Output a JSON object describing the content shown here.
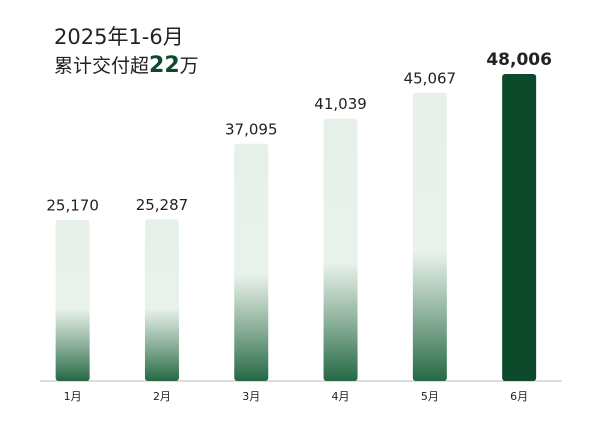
{
  "chart_data": {
    "type": "bar",
    "title": "2025年1-6月",
    "subtitle": [
      "累计交付超",
      "22",
      "万"
    ],
    "categories": [
      "1月",
      "2月",
      "3月",
      "4月",
      "5月",
      "6月"
    ],
    "values": [
      25170,
      25287,
      37095,
      41039,
      45067,
      48006
    ],
    "value_labels": [
      "25,170",
      "25,287",
      "37,095",
      "41,039",
      "45,067",
      "48,006"
    ],
    "gradient": [
      "#e6f0e8",
      "#256843"
    ],
    "highlight": {
      "index": 5,
      "color": "#0d4a2b"
    }
  }
}
